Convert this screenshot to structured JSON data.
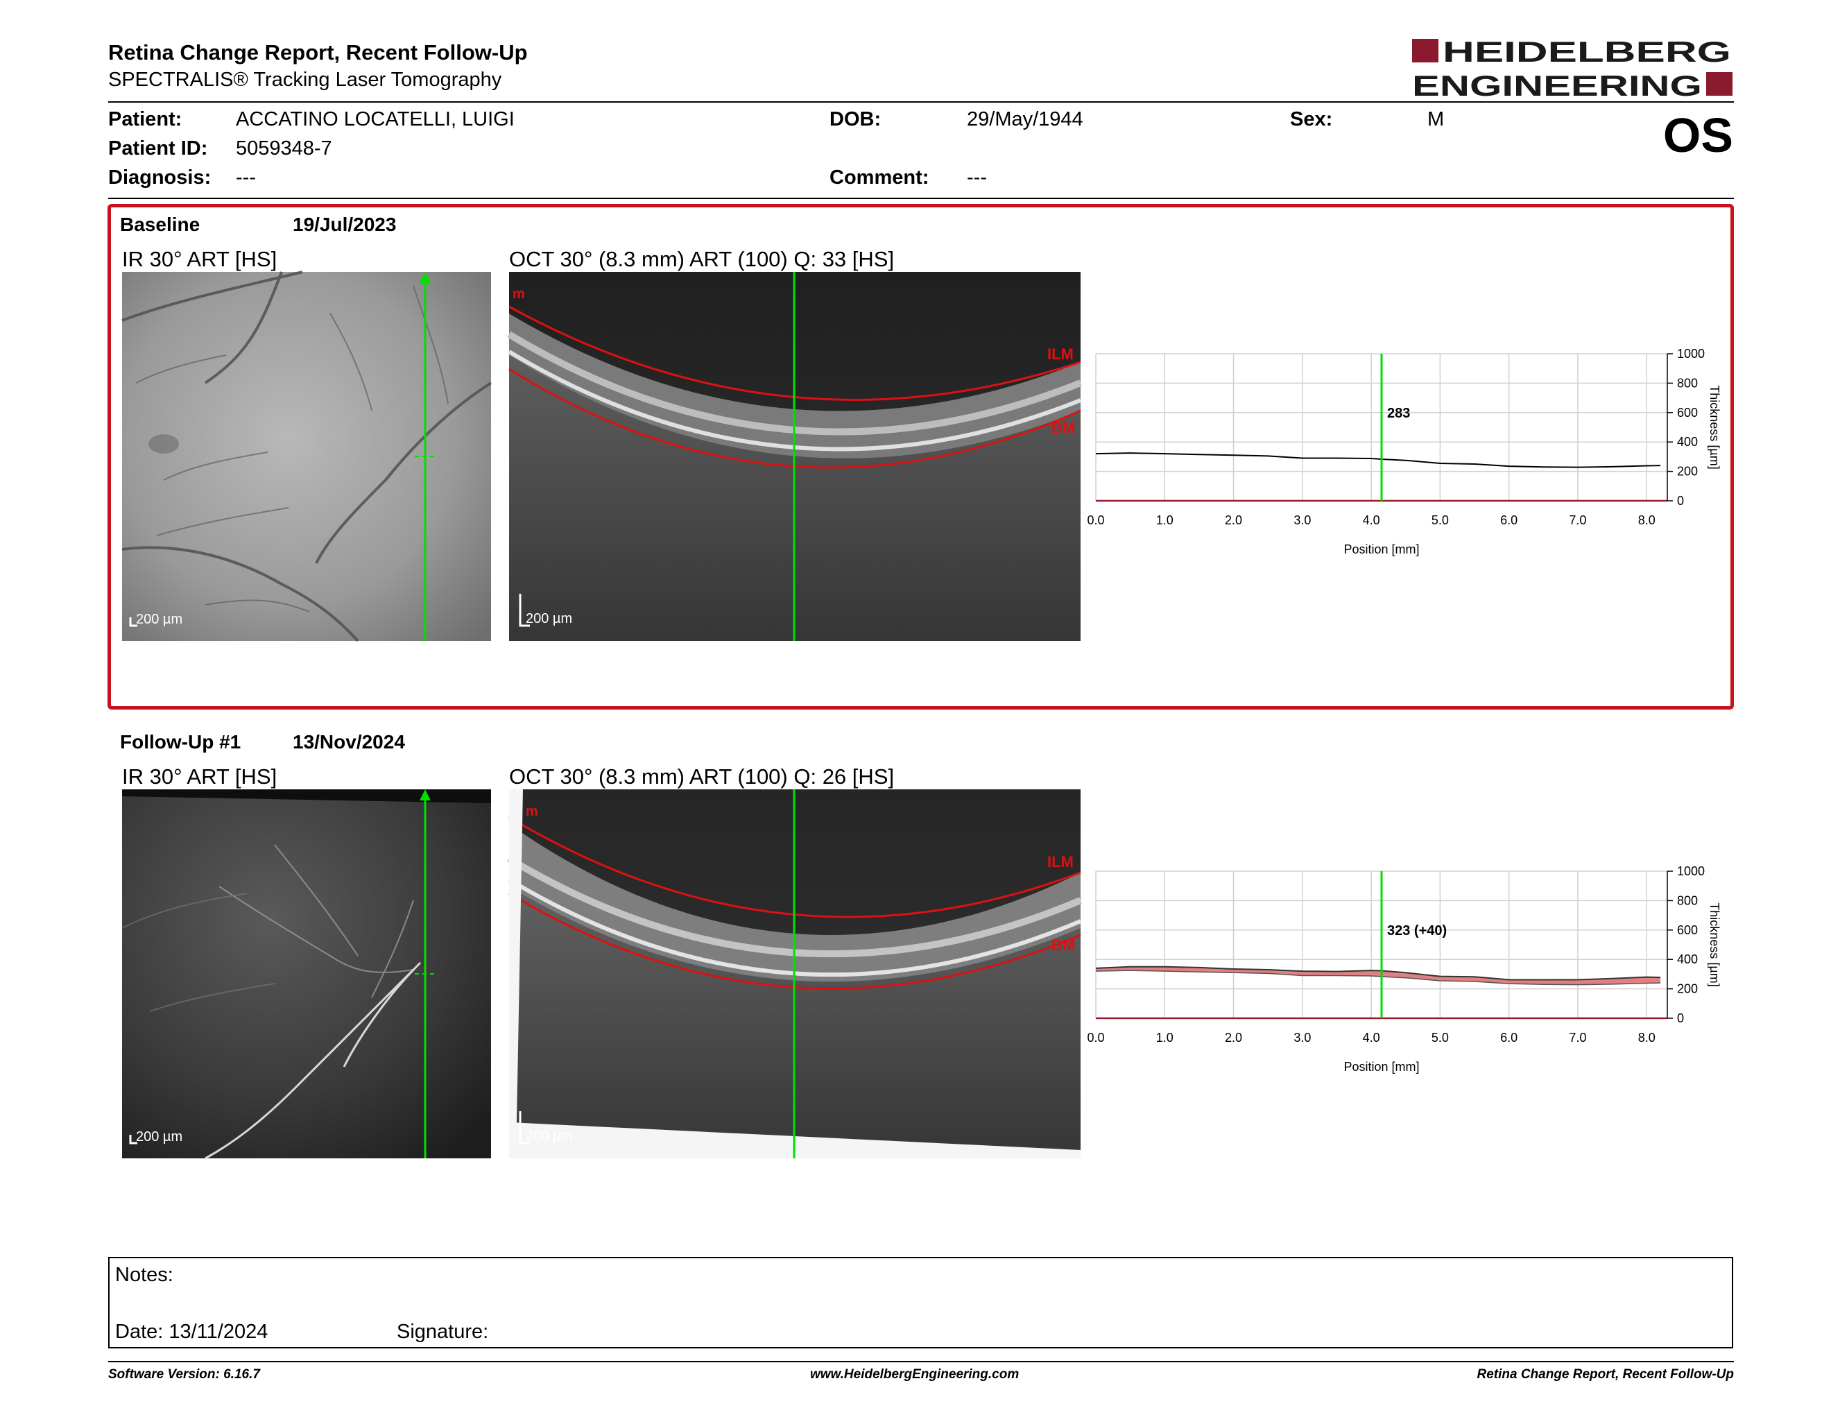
{
  "header": {
    "title": "Retina Change Report, Recent Follow-Up",
    "subtitle": "SPECTRALIS® Tracking Laser Tomography",
    "logo_line1": "HEIDELBERG",
    "logo_line2": "ENGINEERING",
    "brand_color": "#8b1a2e"
  },
  "patient": {
    "patient_label": "Patient:",
    "patient_value": "ACCATINO LOCATELLI, LUIGI",
    "dob_label": "DOB:",
    "dob_value": "29/May/1944",
    "sex_label": "Sex:",
    "sex_value": "M",
    "id_label": "Patient ID:",
    "id_value": "5059348-7",
    "diagnosis_label": "Diagnosis:",
    "diagnosis_value": "---",
    "comment_label": "Comment:",
    "comment_value": "---",
    "eye": "OS"
  },
  "baseline": {
    "label": "Baseline",
    "date": "19/Jul/2023",
    "ir_title": "IR 30° ART [HS]",
    "oct_title": "OCT 30° (8.3 mm) ART (100) Q: 33 [HS]",
    "scale_label": "200 µm",
    "ilm": "ILM",
    "bm": "BM",
    "m": "m",
    "value_label": "283"
  },
  "followup": {
    "label": "Follow-Up #1",
    "date": "13/Nov/2024",
    "ir_title": "IR 30° ART [HS]",
    "oct_title": "OCT 30° (8.3 mm) ART (100) Q: 26 [HS]",
    "scale_label": "200 µm",
    "ilm": "ILM",
    "bm": "BM",
    "m": "m",
    "value_label": "323 (+40)"
  },
  "chart_data": [
    {
      "type": "line",
      "xlabel": "Position [mm]",
      "ylabel": "Thickness [µm]",
      "xlim": [
        0,
        8.3
      ],
      "ylim": [
        0,
        1000
      ],
      "xticks": [
        "0.0",
        "1.0",
        "2.0",
        "3.0",
        "4.0",
        "5.0",
        "6.0",
        "7.0",
        "8.0"
      ],
      "yticks": [
        "0",
        "200",
        "400",
        "600",
        "800",
        "1000"
      ],
      "grid": true,
      "marker_x": 4.15,
      "marker_label": "283",
      "series": [
        {
          "x": [
            0.0,
            0.5,
            1.0,
            1.5,
            2.0,
            2.5,
            3.0,
            3.5,
            4.0,
            4.15,
            4.5,
            5.0,
            5.5,
            6.0,
            6.5,
            7.0,
            7.5,
            8.0,
            8.2
          ],
          "values": [
            320,
            325,
            320,
            315,
            310,
            305,
            290,
            290,
            288,
            283,
            275,
            255,
            250,
            235,
            230,
            228,
            232,
            238,
            240
          ]
        }
      ]
    },
    {
      "type": "area",
      "xlabel": "Position [mm]",
      "ylabel": "Thickness [µm]",
      "xlim": [
        0,
        8.3
      ],
      "ylim": [
        0,
        1000
      ],
      "xticks": [
        "0.0",
        "1.0",
        "2.0",
        "3.0",
        "4.0",
        "5.0",
        "6.0",
        "7.0",
        "8.0"
      ],
      "yticks": [
        "0",
        "200",
        "400",
        "600",
        "800",
        "1000"
      ],
      "grid": true,
      "marker_x": 4.15,
      "marker_label": "323 (+40)",
      "series": [
        {
          "x": [
            0.0,
            0.5,
            1.0,
            1.5,
            2.0,
            2.5,
            3.0,
            3.5,
            4.0,
            4.15,
            4.5,
            5.0,
            5.5,
            6.0,
            6.5,
            7.0,
            7.5,
            8.0,
            8.2
          ],
          "values": [
            340,
            350,
            350,
            345,
            335,
            330,
            320,
            318,
            325,
            323,
            310,
            285,
            282,
            262,
            262,
            262,
            270,
            280,
            278
          ]
        },
        {
          "x": [
            0.0,
            0.5,
            1.0,
            1.5,
            2.0,
            2.5,
            3.0,
            3.5,
            4.0,
            4.15,
            4.5,
            5.0,
            5.5,
            6.0,
            6.5,
            7.0,
            7.5,
            8.0,
            8.2
          ],
          "values": [
            320,
            325,
            320,
            315,
            310,
            305,
            290,
            290,
            288,
            283,
            275,
            255,
            250,
            235,
            230,
            228,
            232,
            238,
            240
          ]
        }
      ]
    }
  ],
  "notes": {
    "notes_label": "Notes:",
    "date_label": "Date: 13/11/2024",
    "signature_label": "Signature:"
  },
  "footer": {
    "version": "Software Version: 6.16.7",
    "url": "www.HeidelbergEngineering.com",
    "report": "Retina Change Report, Recent Follow-Up"
  }
}
